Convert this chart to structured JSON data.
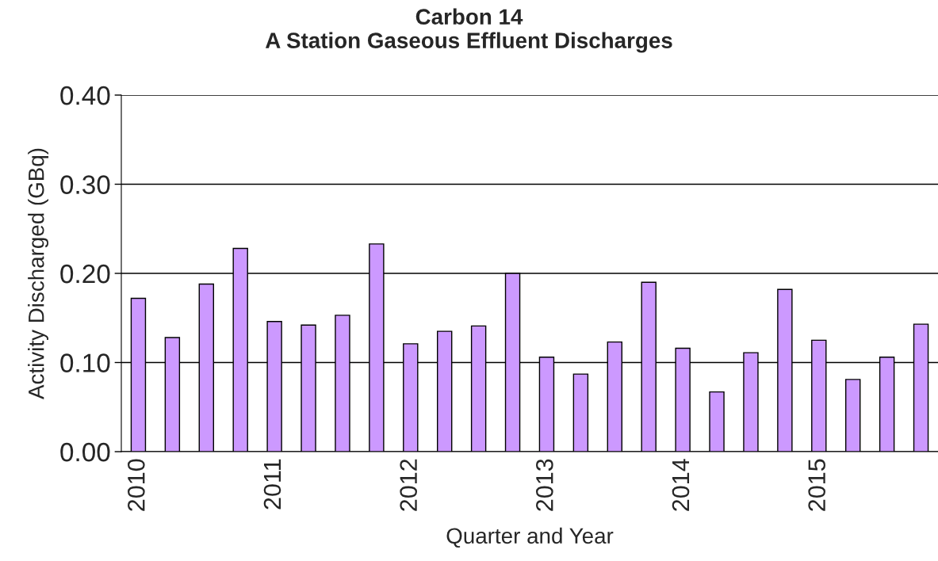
{
  "chart_data": {
    "type": "bar",
    "title": "Carbon 14\nA Station Gaseous Effluent Discharges",
    "xlabel": "Quarter and Year",
    "ylabel": "Activity Discharged (GBq)",
    "categories": [
      "2010",
      null,
      null,
      null,
      "2011",
      null,
      null,
      null,
      "2012",
      null,
      null,
      null,
      "2013",
      null,
      null,
      null,
      "2014",
      null,
      null,
      null,
      "2015",
      null,
      null,
      null
    ],
    "values": [
      0.172,
      0.128,
      0.188,
      0.228,
      0.146,
      0.142,
      0.153,
      0.233,
      0.121,
      0.135,
      0.141,
      0.2,
      0.106,
      0.087,
      0.123,
      0.19,
      0.116,
      0.067,
      0.111,
      0.182,
      0.125,
      0.081,
      0.106,
      0.143
    ],
    "color": "#cc99ff",
    "ylim": [
      0,
      0.4
    ],
    "yticks": [
      {
        "value": 0,
        "label": "0.00"
      },
      {
        "value": 0.1,
        "label": "0.10"
      },
      {
        "value": 0.2,
        "label": "0.20"
      },
      {
        "value": 0.3,
        "label": "0.30"
      },
      {
        "value": 0.4,
        "label": "0.40"
      }
    ],
    "grid": "y",
    "legend": false
  }
}
